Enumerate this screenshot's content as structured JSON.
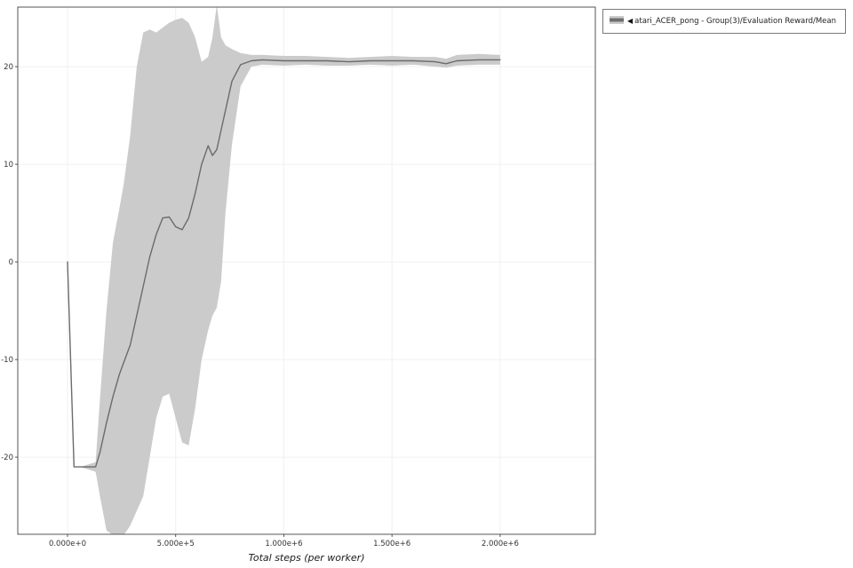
{
  "figure": {
    "background": "#ffffff",
    "legend": {
      "marker": "◀",
      "label": "atari_ACER_pong - Group(3)/Evaluation Reward/Mean"
    }
  },
  "chart_data": {
    "type": "line",
    "title": "",
    "xlabel": "Total steps (per worker)",
    "ylabel": "",
    "grid": true,
    "legend_position": "top-right-outside",
    "xlim": [
      -230000,
      2440000
    ],
    "ylim": [
      -27.9,
      26.1
    ],
    "xticks": {
      "values": [
        0,
        500000,
        1000000,
        1500000,
        2000000
      ],
      "labels": [
        "0.000e+0",
        "5.000e+5",
        "1.000e+6",
        "1.500e+6",
        "2.000e+6"
      ]
    },
    "yticks": {
      "values": [
        -20,
        -10,
        0,
        10,
        20
      ],
      "labels": [
        "-20",
        "-10",
        "0",
        "10",
        "20"
      ]
    },
    "axis_color": "#444444",
    "grid_color": "#f0f0f0",
    "tick_label_color": "#333333",
    "series": [
      {
        "name": "atari_ACER_pong - Group(3)/Evaluation Reward/Mean",
        "line_color": "#6b6b6b",
        "band_color": "#cbcbcb",
        "x": [
          0,
          30000,
          60000,
          130000,
          150000,
          180000,
          210000,
          240000,
          260000,
          290000,
          320000,
          350000,
          380000,
          410000,
          440000,
          470000,
          500000,
          530000,
          560000,
          590000,
          620000,
          650000,
          670000,
          690000,
          710000,
          730000,
          760000,
          800000,
          850000,
          900000,
          1000000,
          1100000,
          1200000,
          1300000,
          1400000,
          1500000,
          1600000,
          1700000,
          1750000,
          1800000,
          1900000,
          2000000
        ],
        "mean": [
          0,
          -21,
          -21,
          -21,
          -19.5,
          -16.5,
          -13.8,
          -11.5,
          -10.3,
          -8.5,
          -5.5,
          -2.5,
          0.5,
          2.8,
          4.5,
          4.6,
          3.6,
          3.3,
          4.5,
          7,
          10,
          11.9,
          10.9,
          11.5,
          13.5,
          15.5,
          18.5,
          20.2,
          20.6,
          20.7,
          20.6,
          20.6,
          20.6,
          20.5,
          20.6,
          20.6,
          20.6,
          20.5,
          20.3,
          20.6,
          20.7,
          20.7
        ],
        "lower": [
          0,
          -21,
          -21,
          -21.5,
          -24,
          -27.5,
          -28,
          -28,
          -28,
          -27,
          -25.5,
          -24,
          -20,
          -16,
          -13.8,
          -13.5,
          -16,
          -18.5,
          -18.8,
          -15,
          -10,
          -7,
          -5.5,
          -4.7,
          -2,
          5,
          12,
          18,
          20.0,
          20.2,
          20.1,
          20.2,
          20.1,
          20.1,
          20.2,
          20.1,
          20.2,
          20.0,
          19.9,
          20.1,
          20.2,
          20.2
        ],
        "upper": [
          0,
          -21,
          -21,
          -20.5,
          -14,
          -5,
          2,
          5.5,
          8,
          13,
          20,
          23.5,
          23.8,
          23.5,
          24,
          24.5,
          24.8,
          25,
          24.5,
          23,
          20.5,
          21,
          23,
          26.3,
          23,
          22.2,
          21.8,
          21.4,
          21.2,
          21.2,
          21.1,
          21.1,
          21.0,
          20.9,
          21.0,
          21.1,
          21.0,
          21.0,
          20.8,
          21.2,
          21.3,
          21.2
        ]
      }
    ]
  }
}
